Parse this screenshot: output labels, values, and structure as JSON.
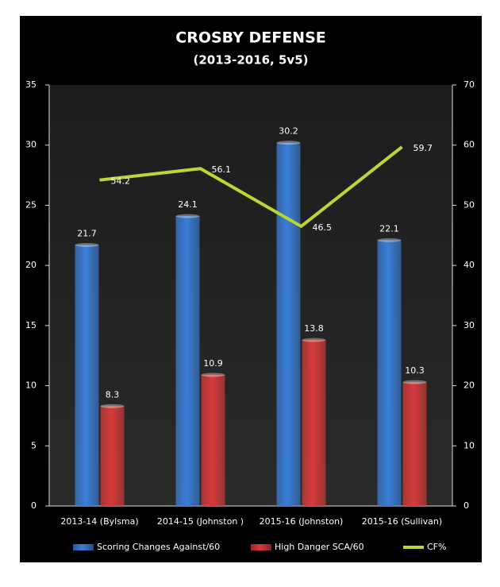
{
  "chart_data": {
    "type": "bar",
    "title": "CROSBY DEFENSE",
    "subtitle": "(2013-2016, 5v5)",
    "categories": [
      "2013-14 (Bylsma)",
      "2014-15 (Johnston )",
      "2015-16 (Johnston)",
      "2015-16 (Sullivan)"
    ],
    "series": [
      {
        "name": "Scoring Changes Against/60",
        "color": "#3b7fd8",
        "type": "bar",
        "values": [
          21.7,
          24.1,
          30.2,
          22.1
        ]
      },
      {
        "name": "High Danger SCA/60",
        "color": "#d83b3b",
        "type": "bar",
        "values": [
          8.3,
          10.9,
          13.8,
          10.3
        ]
      },
      {
        "name": "CF%",
        "color": "#b8d832",
        "type": "line",
        "axis": "y2",
        "values": [
          54.2,
          56.1,
          46.5,
          59.7
        ]
      }
    ],
    "ylim": [
      0,
      35
    ],
    "yticks": [
      0,
      5,
      10,
      15,
      20,
      25,
      30,
      35
    ],
    "y2lim": [
      0,
      70
    ],
    "y2ticks": [
      0,
      10,
      20,
      30,
      40,
      50,
      60,
      70
    ],
    "grid": false,
    "legend": "bottom"
  }
}
